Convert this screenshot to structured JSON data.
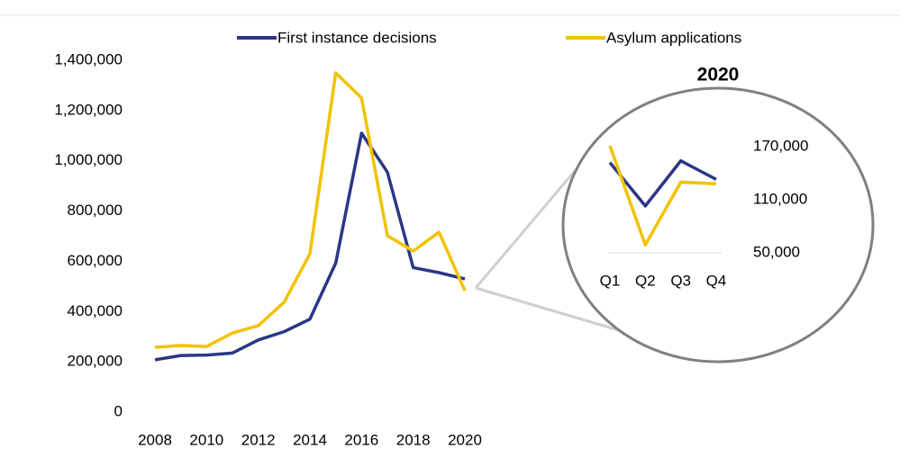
{
  "chart_data": [
    {
      "type": "line",
      "x": [
        2008,
        2009,
        2010,
        2011,
        2012,
        2013,
        2014,
        2015,
        2016,
        2017,
        2018,
        2019,
        2020
      ],
      "xlim": [
        2008,
        2020
      ],
      "xticks": [
        2008,
        2010,
        2012,
        2014,
        2016,
        2018,
        2020
      ],
      "ylim": [
        0,
        1400000
      ],
      "yticks": [
        0,
        {
          "value": 200000,
          "label": "200,000"
        },
        {
          "value": 400000,
          "label": "400,000"
        },
        {
          "value": 600000,
          "label": "600,000"
        },
        {
          "value": 800000,
          "label": "800,000"
        },
        {
          "value": 1000000,
          "label": "1,000,000"
        },
        {
          "value": 1200000,
          "label": "1,200,000"
        },
        {
          "value": 1400000,
          "label": "1,400,000"
        }
      ],
      "legend": "top",
      "series": [
        {
          "name": "First instance decisions",
          "color": "#2b3785",
          "values": [
            208000,
            225000,
            227000,
            235000,
            287000,
            320000,
            370000,
            593000,
            1110000,
            955000,
            575000,
            555000,
            530000
          ]
        },
        {
          "name": "Asylum applications",
          "color": "#f2c200",
          "values": [
            258000,
            265000,
            261000,
            315000,
            344000,
            437000,
            630000,
            1350000,
            1250000,
            702000,
            641000,
            716000,
            483000
          ]
        }
      ]
    },
    {
      "type": "line",
      "title": "2020",
      "categories": [
        "Q1",
        "Q2",
        "Q3",
        "Q4"
      ],
      "ylim": [
        50000,
        170000
      ],
      "yticks": [
        {
          "value": 50000,
          "label": "50,000"
        },
        {
          "value": 110000,
          "label": "110,000"
        },
        {
          "value": 170000,
          "label": "170,000"
        }
      ],
      "series": [
        {
          "name": "First instance decisions",
          "color": "#2b3785",
          "values": [
            152000,
            103000,
            154000,
            133000
          ]
        },
        {
          "name": "Asylum applications",
          "color": "#f2c200",
          "values": [
            171000,
            59000,
            130000,
            128000
          ]
        }
      ]
    }
  ]
}
